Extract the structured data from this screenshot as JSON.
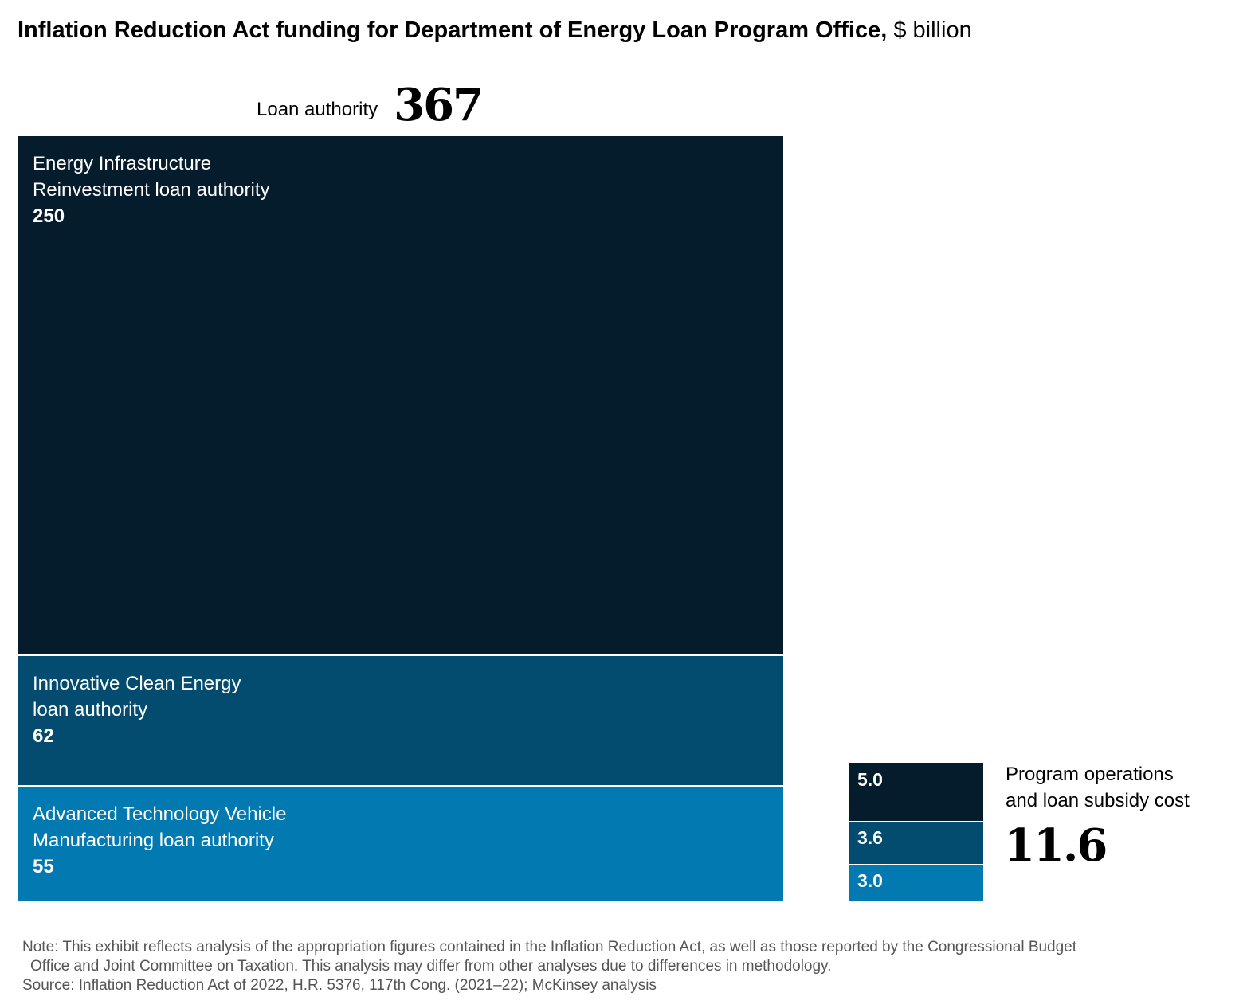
{
  "chart_data": {
    "type": "treemap",
    "title": "Inflation Reduction Act funding for Department of Energy Loan Program Office,",
    "unit": "$ billion",
    "loan_authority": {
      "label": "Loan authority",
      "total": "367",
      "segments": [
        {
          "line1": "Energy Infrastructure",
          "line2": "Reinvestment loan authority",
          "value": 250,
          "value_label": "250",
          "color": "#051c2c"
        },
        {
          "line1": "Innovative Clean Energy",
          "line2": "loan authority",
          "value": 62,
          "value_label": "62",
          "color": "#034b6f"
        },
        {
          "line1": "Advanced Technology Vehicle",
          "line2": "Manufacturing loan authority",
          "value": 55,
          "value_label": "55",
          "color": "#027ab1"
        }
      ]
    },
    "program_operations": {
      "line1": "Program operations",
      "line2": "and loan subsidy cost",
      "total": "11.6",
      "segments": [
        {
          "value": 5.0,
          "value_label": "5.0",
          "color": "#051c2c"
        },
        {
          "value": 3.6,
          "value_label": "3.6",
          "color": "#034b6f"
        },
        {
          "value": 3.0,
          "value_label": "3.0",
          "color": "#027ab1"
        }
      ]
    }
  },
  "notes": {
    "note_line1": "Note: This exhibit reflects analysis of the appropriation figures contained in the Inflation Reduction Act, as well as those reported by the Congressional Budget",
    "note_line2": "Office and Joint Committee on Taxation. This analysis may differ from other analyses due to differences in methodology.",
    "source": "Source: Inflation Reduction Act of 2022, H.R. 5376, 117th Cong. (2021–22); McKinsey analysis"
  }
}
